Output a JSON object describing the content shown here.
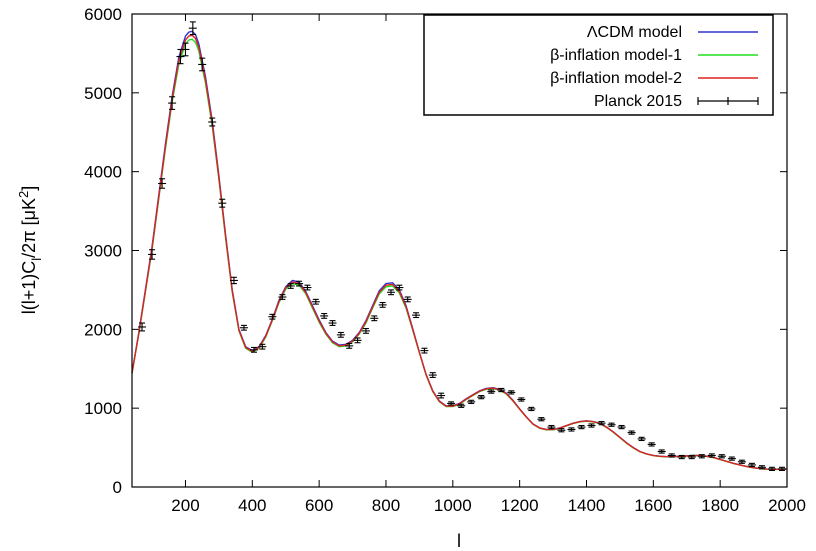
{
  "chart_data": {
    "type": "line",
    "xlabel": "l",
    "ylabel_parts": [
      "l(l+1)C",
      "l",
      "/2π [μK",
      "2",
      "]"
    ],
    "xlim": [
      40,
      2000
    ],
    "ylim": [
      0,
      6000
    ],
    "xticks": [
      200,
      400,
      600,
      800,
      1000,
      1200,
      1400,
      1600,
      1800,
      2000
    ],
    "yticks": [
      0,
      1000,
      2000,
      3000,
      4000,
      5000,
      6000
    ],
    "legend_position": "top-right",
    "legend": {
      "lcdm": "ΛCDM  model",
      "beta1": "β-inflation model-1",
      "beta2": "β-inflation model-2",
      "planck": "Planck 2015"
    },
    "series": [
      {
        "key": "lcdm",
        "name": "ΛCDM  model",
        "color": "#3333cc",
        "x": [
          40,
          60,
          80,
          100,
          120,
          140,
          160,
          180,
          200,
          210,
          220,
          230,
          240,
          260,
          280,
          300,
          320,
          340,
          360,
          380,
          400,
          420,
          440,
          460,
          480,
          500,
          520,
          540,
          560,
          580,
          600,
          620,
          640,
          660,
          680,
          700,
          720,
          740,
          760,
          780,
          800,
          820,
          840,
          860,
          880,
          900,
          920,
          940,
          960,
          980,
          1000,
          1020,
          1040,
          1060,
          1080,
          1100,
          1120,
          1140,
          1160,
          1180,
          1200,
          1220,
          1240,
          1260,
          1280,
          1300,
          1320,
          1340,
          1360,
          1380,
          1400,
          1420,
          1440,
          1460,
          1480,
          1500,
          1520,
          1540,
          1560,
          1580,
          1600,
          1620,
          1640,
          1660,
          1680,
          1700,
          1720,
          1740,
          1760,
          1780,
          1800,
          1820,
          1840,
          1860,
          1880,
          1900,
          1920,
          1940,
          1960,
          1980,
          2000
        ],
        "y": [
          1450,
          1950,
          2500,
          3050,
          3700,
          4350,
          4950,
          5450,
          5720,
          5770,
          5780,
          5740,
          5620,
          5200,
          4650,
          3950,
          3200,
          2500,
          2000,
          1780,
          1730,
          1780,
          1920,
          2130,
          2370,
          2540,
          2620,
          2600,
          2480,
          2300,
          2120,
          1960,
          1850,
          1800,
          1810,
          1860,
          1960,
          2110,
          2300,
          2490,
          2580,
          2590,
          2500,
          2300,
          2010,
          1710,
          1430,
          1220,
          1090,
          1030,
          1030,
          1060,
          1120,
          1170,
          1220,
          1250,
          1260,
          1240,
          1190,
          1100,
          990,
          890,
          800,
          750,
          730,
          730,
          750,
          780,
          810,
          830,
          840,
          830,
          810,
          760,
          700,
          630,
          560,
          500,
          450,
          420,
          400,
          390,
          385,
          385,
          390,
          395,
          400,
          400,
          390,
          375,
          350,
          325,
          300,
          280,
          260,
          245,
          235,
          228,
          225,
          225,
          228
        ]
      },
      {
        "key": "beta1",
        "name": "β-inflation model-1",
        "color": "#22dd22",
        "x": [
          40,
          60,
          80,
          100,
          120,
          140,
          160,
          180,
          200,
          210,
          220,
          230,
          240,
          260,
          280,
          300,
          320,
          340,
          360,
          380,
          400,
          420,
          440,
          460,
          480,
          500,
          520,
          540,
          560,
          580,
          600,
          620,
          640,
          660,
          680,
          700,
          720,
          740,
          760,
          780,
          800,
          820,
          840,
          860,
          880,
          900,
          920,
          940,
          960,
          980,
          1000,
          1020,
          1040,
          1060,
          1080,
          1100,
          1120,
          1140,
          1160,
          1180,
          1200,
          1220,
          1240,
          1260,
          1280,
          1300,
          1320,
          1340,
          1360,
          1380,
          1400,
          1420,
          1440,
          1460,
          1480,
          1500,
          1520,
          1540,
          1560,
          1580,
          1600,
          1620,
          1640,
          1660,
          1680,
          1700,
          1720,
          1740,
          1760,
          1780,
          1800,
          1820,
          1840,
          1860,
          1880,
          1900,
          1920,
          1940,
          1960,
          1980,
          2000
        ],
        "y": [
          1440,
          1930,
          2470,
          3010,
          3650,
          4290,
          4880,
          5360,
          5620,
          5670,
          5680,
          5640,
          5530,
          5120,
          4580,
          3900,
          3160,
          2470,
          1980,
          1760,
          1710,
          1760,
          1900,
          2110,
          2340,
          2510,
          2580,
          2560,
          2450,
          2270,
          2090,
          1940,
          1830,
          1780,
          1790,
          1840,
          1940,
          2080,
          2270,
          2450,
          2540,
          2550,
          2460,
          2270,
          1990,
          1700,
          1420,
          1210,
          1080,
          1020,
          1020,
          1050,
          1110,
          1160,
          1210,
          1240,
          1250,
          1230,
          1180,
          1090,
          985,
          885,
          795,
          745,
          725,
          725,
          745,
          775,
          805,
          825,
          835,
          825,
          805,
          755,
          695,
          625,
          555,
          495,
          447,
          418,
          398,
          388,
          383,
          383,
          388,
          393,
          398,
          398,
          388,
          373,
          348,
          323,
          298,
          278,
          258,
          243,
          233,
          226,
          223,
          223,
          226
        ]
      },
      {
        "key": "beta2",
        "name": "β-inflation model-2",
        "color": "#dd2222",
        "x": [
          40,
          60,
          80,
          100,
          120,
          140,
          160,
          180,
          200,
          210,
          220,
          230,
          240,
          260,
          280,
          300,
          320,
          340,
          360,
          380,
          400,
          420,
          440,
          460,
          480,
          500,
          520,
          540,
          560,
          580,
          600,
          620,
          640,
          660,
          680,
          700,
          720,
          740,
          760,
          780,
          800,
          820,
          840,
          860,
          880,
          900,
          920,
          940,
          960,
          980,
          1000,
          1020,
          1040,
          1060,
          1080,
          1100,
          1120,
          1140,
          1160,
          1180,
          1200,
          1220,
          1240,
          1260,
          1280,
          1300,
          1320,
          1340,
          1360,
          1380,
          1400,
          1420,
          1440,
          1460,
          1480,
          1500,
          1520,
          1540,
          1560,
          1580,
          1600,
          1620,
          1640,
          1660,
          1680,
          1700,
          1720,
          1740,
          1760,
          1780,
          1800,
          1820,
          1840,
          1860,
          1880,
          1900,
          1920,
          1940,
          1960,
          1980,
          2000
        ],
        "y": [
          1445,
          1940,
          2485,
          3030,
          3675,
          4320,
          4915,
          5405,
          5670,
          5720,
          5730,
          5690,
          5575,
          5160,
          4615,
          3925,
          3180,
          2485,
          1990,
          1770,
          1720,
          1770,
          1910,
          2120,
          2355,
          2525,
          2600,
          2580,
          2465,
          2285,
          2105,
          1950,
          1840,
          1790,
          1800,
          1850,
          1950,
          2095,
          2285,
          2470,
          2560,
          2570,
          2480,
          2285,
          2000,
          1705,
          1425,
          1215,
          1085,
          1025,
          1025,
          1055,
          1115,
          1165,
          1215,
          1245,
          1255,
          1235,
          1185,
          1095,
          988,
          888,
          798,
          748,
          728,
          728,
          748,
          778,
          808,
          828,
          838,
          828,
          808,
          758,
          698,
          628,
          558,
          498,
          449,
          419,
          399,
          389,
          384,
          384,
          389,
          394,
          399,
          399,
          389,
          374,
          349,
          324,
          299,
          279,
          259,
          244,
          234,
          227,
          224,
          224,
          227
        ]
      }
    ],
    "points": {
      "key": "planck",
      "name": "Planck 2015",
      "color": "#000000",
      "x": [
        70,
        100,
        130,
        160,
        185,
        200,
        222,
        250,
        280,
        310,
        345,
        375,
        405,
        430,
        460,
        490,
        515,
        540,
        565,
        590,
        615,
        640,
        665,
        690,
        715,
        740,
        765,
        790,
        815,
        840,
        865,
        890,
        915,
        940,
        965,
        995,
        1025,
        1055,
        1085,
        1115,
        1145,
        1175,
        1205,
        1235,
        1265,
        1295,
        1325,
        1355,
        1385,
        1415,
        1445,
        1475,
        1505,
        1535,
        1565,
        1595,
        1625,
        1655,
        1685,
        1715,
        1745,
        1775,
        1805,
        1835,
        1865,
        1895,
        1925,
        1955,
        1985
      ],
      "y": [
        2030,
        2950,
        3850,
        4870,
        5460,
        5550,
        5820,
        5360,
        4630,
        3600,
        2620,
        2020,
        1740,
        1780,
        2160,
        2410,
        2550,
        2580,
        2530,
        2350,
        2170,
        2080,
        1930,
        1790,
        1860,
        1980,
        2140,
        2310,
        2470,
        2530,
        2380,
        2180,
        1730,
        1420,
        1160,
        1060,
        1030,
        1080,
        1140,
        1210,
        1230,
        1200,
        1110,
        990,
        860,
        760,
        720,
        730,
        760,
        780,
        810,
        790,
        760,
        690,
        610,
        540,
        450,
        400,
        380,
        380,
        390,
        400,
        390,
        360,
        320,
        280,
        250,
        230,
        230
      ],
      "err": [
        50,
        60,
        60,
        80,
        90,
        80,
        80,
        80,
        50,
        50,
        40,
        30,
        30,
        30,
        30,
        30,
        30,
        30,
        30,
        30,
        30,
        30,
        30,
        30,
        30,
        30,
        30,
        30,
        30,
        30,
        30,
        30,
        30,
        30,
        30,
        20,
        20,
        20,
        20,
        20,
        20,
        20,
        20,
        20,
        20,
        20,
        20,
        20,
        20,
        20,
        20,
        20,
        20,
        20,
        20,
        20,
        20,
        20,
        20,
        20,
        20,
        20,
        20,
        20,
        20,
        20,
        20,
        20,
        20
      ]
    }
  }
}
